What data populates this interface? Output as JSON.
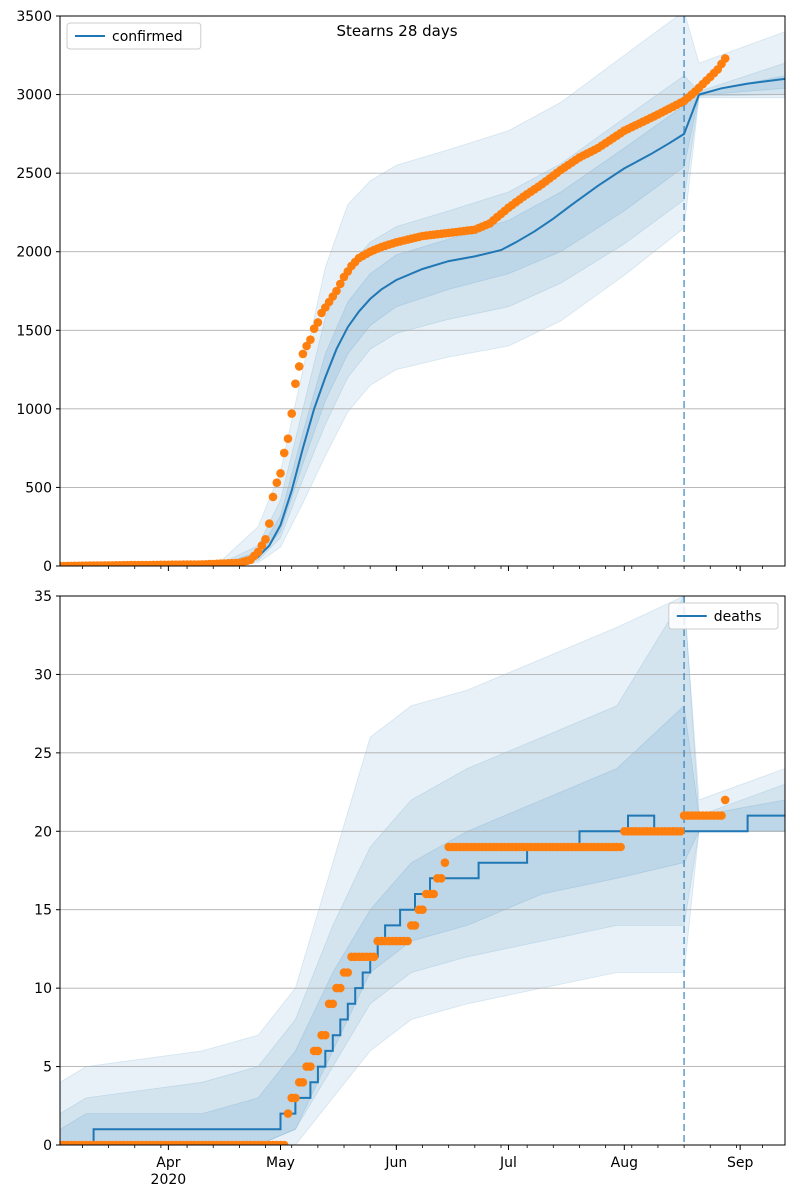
{
  "chart_data": [
    {
      "type": "line",
      "title": "Stearns 28 days",
      "x_start": "2020-03-03",
      "x_end": "2020-09-13",
      "forecast_start": "2020-08-17",
      "ylim": [
        0,
        3500
      ],
      "yticks": [
        0,
        500,
        1000,
        1500,
        2000,
        2500,
        3000,
        3500
      ],
      "grid": "horizontal",
      "legend": {
        "position": "top-left",
        "entries": [
          "confirmed"
        ]
      },
      "series": [
        {
          "name": "confirmed",
          "kind": "model-median",
          "color": "#1f77b4",
          "x": [
            "2020-03-03",
            "2020-04-01",
            "2020-04-15",
            "2020-04-21",
            "2020-04-25",
            "2020-04-28",
            "2020-05-01",
            "2020-05-04",
            "2020-05-07",
            "2020-05-10",
            "2020-05-13",
            "2020-05-16",
            "2020-05-19",
            "2020-05-22",
            "2020-05-25",
            "2020-05-28",
            "2020-06-01",
            "2020-06-08",
            "2020-06-15",
            "2020-06-22",
            "2020-06-29",
            "2020-07-03",
            "2020-07-08",
            "2020-07-13",
            "2020-07-18",
            "2020-07-25",
            "2020-08-01",
            "2020-08-08",
            "2020-08-13",
            "2020-08-17",
            "2020-08-21",
            "2020-08-27",
            "2020-09-03",
            "2020-09-13"
          ],
          "y": [
            0,
            0,
            5,
            20,
            60,
            130,
            260,
            480,
            750,
            1000,
            1200,
            1380,
            1520,
            1620,
            1700,
            1760,
            1820,
            1890,
            1940,
            1970,
            2010,
            2060,
            2130,
            2210,
            2300,
            2420,
            2530,
            2620,
            2690,
            2750,
            3000,
            3040,
            3070,
            3100
          ]
        },
        {
          "name": "",
          "kind": "observed",
          "color": "#ff7f0e",
          "x": [
            "2020-03-03",
            "2020-03-20",
            "2020-04-10",
            "2020-04-20",
            "2020-04-23",
            "2020-04-25",
            "2020-04-27",
            "2020-04-28",
            "2020-04-29",
            "2020-04-30",
            "2020-05-01",
            "2020-05-02",
            "2020-05-03",
            "2020-05-04",
            "2020-05-05",
            "2020-05-06",
            "2020-05-07",
            "2020-05-08",
            "2020-05-09",
            "2020-05-10",
            "2020-05-11",
            "2020-05-12",
            "2020-05-14",
            "2020-05-16",
            "2020-05-18",
            "2020-05-20",
            "2020-05-22",
            "2020-05-25",
            "2020-05-28",
            "2020-06-01",
            "2020-06-08",
            "2020-06-15",
            "2020-06-22",
            "2020-06-26",
            "2020-07-01",
            "2020-07-05",
            "2020-07-10",
            "2020-07-15",
            "2020-07-20",
            "2020-07-25",
            "2020-08-01",
            "2020-08-08",
            "2020-08-13",
            "2020-08-17",
            "2020-08-20",
            "2020-08-23",
            "2020-08-26",
            "2020-08-28"
          ],
          "y": [
            0,
            5,
            10,
            20,
            40,
            90,
            170,
            270,
            440,
            530,
            590,
            720,
            810,
            970,
            1160,
            1270,
            1350,
            1400,
            1440,
            1510,
            1550,
            1610,
            1680,
            1750,
            1840,
            1910,
            1960,
            2000,
            2030,
            2060,
            2100,
            2120,
            2140,
            2180,
            2280,
            2350,
            2430,
            2520,
            2600,
            2660,
            2770,
            2850,
            2910,
            2960,
            3020,
            3090,
            3160,
            3230
          ]
        }
      ],
      "bands": [
        {
          "x": [
            "2020-03-03",
            "2020-04-01",
            "2020-04-15",
            "2020-04-25",
            "2020-05-01",
            "2020-05-07",
            "2020-05-13",
            "2020-05-19",
            "2020-05-25",
            "2020-06-01",
            "2020-06-15",
            "2020-07-01",
            "2020-07-15",
            "2020-08-01",
            "2020-08-17",
            "2020-08-21",
            "2020-09-13"
          ],
          "lo": [
            0,
            0,
            0,
            20,
            120,
            400,
            700,
            980,
            1150,
            1250,
            1330,
            1400,
            1560,
            1850,
            2150,
            2980,
            2980
          ],
          "hi": [
            10,
            10,
            30,
            250,
            600,
            1250,
            1900,
            2300,
            2450,
            2550,
            2650,
            2770,
            2950,
            3250,
            3530,
            3200,
            3400
          ]
        },
        {
          "x": [
            "2020-03-03",
            "2020-04-01",
            "2020-04-15",
            "2020-04-25",
            "2020-05-01",
            "2020-05-07",
            "2020-05-13",
            "2020-05-19",
            "2020-05-25",
            "2020-06-01",
            "2020-06-15",
            "2020-07-01",
            "2020-07-15",
            "2020-08-01",
            "2020-08-17",
            "2020-08-21",
            "2020-09-13"
          ],
          "lo": [
            0,
            0,
            0,
            35,
            180,
            550,
            900,
            1200,
            1380,
            1480,
            1570,
            1650,
            1800,
            2050,
            2330,
            2990,
            3000
          ],
          "hi": [
            5,
            5,
            15,
            130,
            420,
            1000,
            1580,
            1900,
            2060,
            2160,
            2260,
            2380,
            2560,
            2850,
            3120,
            3020,
            3200
          ]
        },
        {
          "x": [
            "2020-03-03",
            "2020-04-01",
            "2020-04-15",
            "2020-04-25",
            "2020-05-01",
            "2020-05-07",
            "2020-05-13",
            "2020-05-19",
            "2020-05-25",
            "2020-06-01",
            "2020-06-15",
            "2020-07-01",
            "2020-07-15",
            "2020-08-01",
            "2020-08-17",
            "2020-08-21",
            "2020-09-13"
          ],
          "lo": [
            0,
            0,
            0,
            45,
            220,
            650,
            1050,
            1350,
            1530,
            1650,
            1760,
            1860,
            2000,
            2260,
            2540,
            2995,
            3040
          ],
          "hi": [
            3,
            3,
            10,
            90,
            320,
            850,
            1350,
            1680,
            1860,
            1980,
            2080,
            2200,
            2380,
            2660,
            2930,
            3010,
            3120
          ]
        }
      ],
      "xticks": [
        {
          "date": "2020-04-01",
          "label": "Apr",
          "sublabel": "2020"
        },
        {
          "date": "2020-05-01",
          "label": "May"
        },
        {
          "date": "2020-06-01",
          "label": "Jun"
        },
        {
          "date": "2020-07-01",
          "label": "Jul"
        },
        {
          "date": "2020-08-01",
          "label": "Aug"
        },
        {
          "date": "2020-09-01",
          "label": "Sep"
        }
      ],
      "xticklabels_visible": false
    },
    {
      "type": "line",
      "title": "",
      "x_start": "2020-03-03",
      "x_end": "2020-09-13",
      "forecast_start": "2020-08-17",
      "ylim": [
        0,
        35
      ],
      "yticks": [
        0,
        5,
        10,
        15,
        20,
        25,
        30,
        35
      ],
      "grid": "horizontal",
      "legend": {
        "position": "top-right",
        "entries": [
          "deaths"
        ]
      },
      "series": [
        {
          "name": "deaths",
          "kind": "model-median-step",
          "color": "#1f77b4",
          "x": [
            "2020-03-03",
            "2020-03-12",
            "2020-05-01",
            "2020-05-05",
            "2020-05-09",
            "2020-05-11",
            "2020-05-13",
            "2020-05-15",
            "2020-05-17",
            "2020-05-19",
            "2020-05-21",
            "2020-05-23",
            "2020-05-25",
            "2020-05-27",
            "2020-05-29",
            "2020-06-02",
            "2020-06-06",
            "2020-06-10",
            "2020-06-13",
            "2020-06-23",
            "2020-07-06",
            "2020-07-20",
            "2020-08-02",
            "2020-08-09",
            "2020-09-03",
            "2020-09-13"
          ],
          "y": [
            0,
            1,
            2,
            3,
            4,
            5,
            6,
            7,
            8,
            9,
            10,
            11,
            12,
            13,
            14,
            15,
            16,
            17,
            17,
            18,
            19,
            20,
            21,
            20,
            21,
            21
          ]
        },
        {
          "name": "",
          "kind": "observed",
          "color": "#ff7f0e",
          "x": [
            "2020-03-03",
            "2020-05-01",
            "2020-05-03",
            "2020-05-04",
            "2020-05-06",
            "2020-05-08",
            "2020-05-10",
            "2020-05-12",
            "2020-05-14",
            "2020-05-16",
            "2020-05-18",
            "2020-05-20",
            "2020-05-23",
            "2020-05-27",
            "2020-06-01",
            "2020-06-05",
            "2020-06-07",
            "2020-06-09",
            "2020-06-12",
            "2020-06-14",
            "2020-06-15",
            "2020-07-31",
            "2020-08-01",
            "2020-08-17",
            "2020-08-26",
            "2020-08-28"
          ],
          "y": [
            0,
            0,
            2,
            3,
            4,
            5,
            6,
            7,
            9,
            10,
            11,
            12,
            12,
            13,
            13,
            14,
            15,
            16,
            17,
            18,
            19,
            19,
            20,
            21,
            21,
            22
          ]
        }
      ],
      "bands": [
        {
          "x": [
            "2020-03-03",
            "2020-03-10",
            "2020-04-10",
            "2020-04-25",
            "2020-05-05",
            "2020-05-15",
            "2020-05-25",
            "2020-06-05",
            "2020-06-20",
            "2020-07-10",
            "2020-07-30",
            "2020-08-17",
            "2020-08-21",
            "2020-09-13"
          ],
          "lo": [
            0,
            0,
            0,
            0,
            0,
            3,
            6,
            8,
            9,
            10,
            11,
            11,
            20,
            20
          ],
          "hi": [
            4,
            5,
            6,
            7,
            10,
            18,
            26,
            28,
            29,
            31,
            33,
            35,
            22,
            24
          ]
        },
        {
          "x": [
            "2020-03-03",
            "2020-03-10",
            "2020-04-10",
            "2020-04-25",
            "2020-05-05",
            "2020-05-15",
            "2020-05-25",
            "2020-06-05",
            "2020-06-20",
            "2020-07-10",
            "2020-07-30",
            "2020-08-17",
            "2020-08-21",
            "2020-09-13"
          ],
          "lo": [
            0,
            0,
            0,
            0,
            1,
            5,
            9,
            11,
            12,
            13,
            14,
            14,
            20,
            20
          ],
          "hi": [
            2,
            3,
            4,
            5,
            8,
            14,
            19,
            22,
            24,
            26,
            28,
            35,
            21,
            23
          ]
        },
        {
          "x": [
            "2020-03-03",
            "2020-03-10",
            "2020-04-10",
            "2020-04-25",
            "2020-05-05",
            "2020-05-15",
            "2020-05-25",
            "2020-06-05",
            "2020-06-20",
            "2020-07-10",
            "2020-07-30",
            "2020-08-17",
            "2020-08-21",
            "2020-09-13"
          ],
          "lo": [
            0,
            0,
            0,
            0,
            1,
            6,
            11,
            13,
            14,
            16,
            17,
            18,
            20,
            20
          ],
          "hi": [
            1,
            2,
            2,
            3,
            6,
            11,
            15,
            18,
            20,
            22,
            24,
            28,
            21,
            22
          ]
        }
      ],
      "xticks": [
        {
          "date": "2020-04-01",
          "label": "Apr",
          "sublabel": "2020"
        },
        {
          "date": "2020-05-01",
          "label": "May"
        },
        {
          "date": "2020-06-01",
          "label": "Jun"
        },
        {
          "date": "2020-07-01",
          "label": "Jul"
        },
        {
          "date": "2020-08-01",
          "label": "Aug"
        },
        {
          "date": "2020-09-01",
          "label": "Sep"
        }
      ],
      "xticklabels_visible": true
    }
  ],
  "colors": {
    "model": "#1f77b4",
    "observed": "#ff7f0e",
    "grid": "#b0b0b0"
  }
}
